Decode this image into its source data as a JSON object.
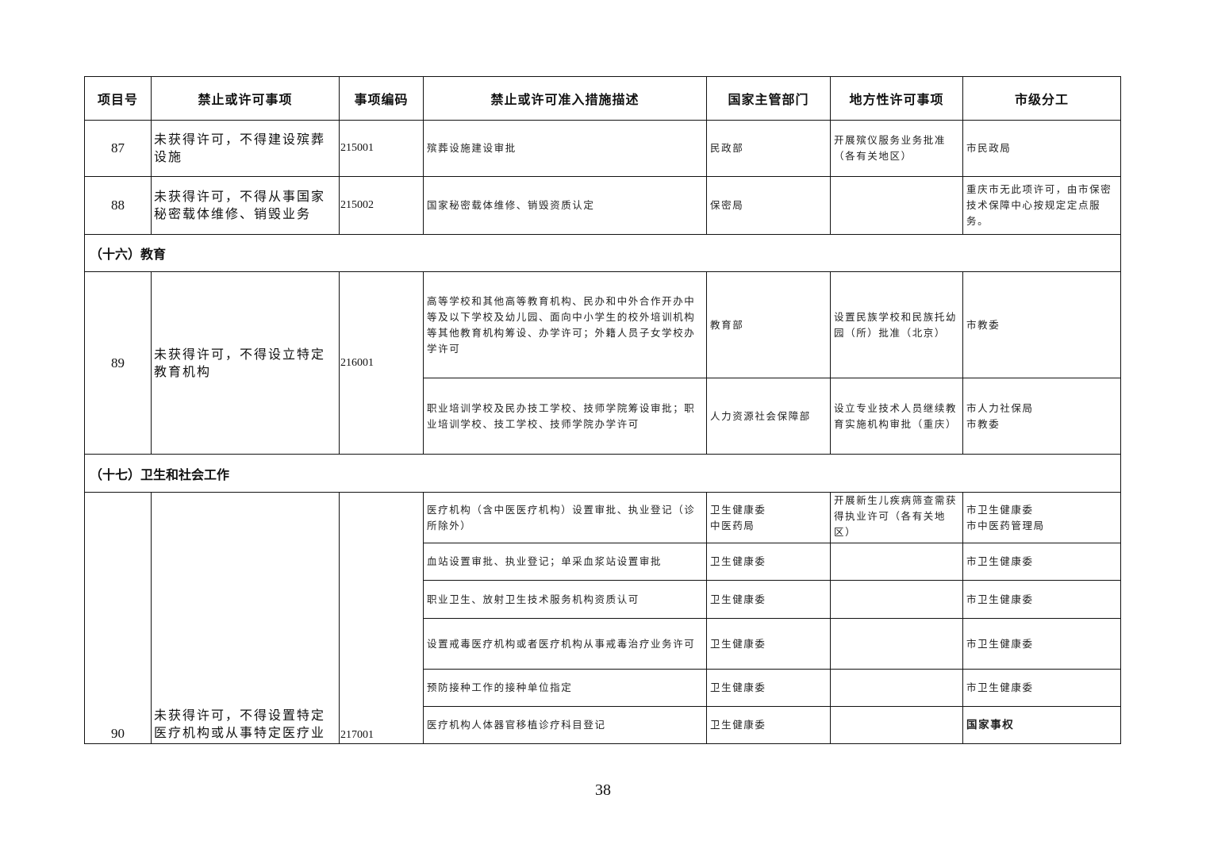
{
  "columns": [
    "项目号",
    "禁止或许可事项",
    "事项编码",
    "禁止或许可准入措施描述",
    "国家主管部门",
    "地方性许可事项",
    "市级分工"
  ],
  "rows": {
    "r87": {
      "num": "87",
      "item": "未获得许可，不得建设殡葬设施",
      "code": "215001",
      "desc": "殡葬设施建设审批",
      "dept": "民政部",
      "local": "开展殡仪服务业务批准（各有关地区）",
      "city": "市民政局"
    },
    "r88": {
      "num": "88",
      "item": "未获得许可，不得从事国家秘密载体维修、销毁业务",
      "code": "215002",
      "desc": "国家秘密载体维修、销毁资质认定",
      "dept": "保密局",
      "local": "",
      "city": "重庆市无此项许可，由市保密技术保障中心按规定定点服务。"
    }
  },
  "section16": "（十六）教育",
  "r89": {
    "num": "89",
    "item": "未获得许可，不得设立特定教育机构",
    "code": "216001",
    "subs": [
      {
        "desc": "高等学校和其他高等教育机构、民办和中外合作开办中等及以下学校及幼儿园、面向中小学生的校外培训机构等其他教育机构筹设、办学许可；外籍人员子女学校办学许可",
        "dept": "教育部",
        "local": "设置民族学校和民族托幼园（所）批准（北京）",
        "city": "市教委"
      },
      {
        "desc": "职业培训学校及民办技工学校、技师学院筹设审批；职业培训学校、技工学校、技师学院办学许可",
        "dept": "人力资源社会保障部",
        "local": "设立专业技术人员继续教育实施机构审批（重庆）",
        "city": "市人力社保局\n市教委"
      }
    ]
  },
  "section17": "（十七）卫生和社会工作",
  "r90": {
    "num": "90",
    "item": "未获得许可，不得设置特定医疗机构或从事特定医疗业",
    "code": "217001",
    "subs": [
      {
        "desc": "医疗机构（含中医医疗机构）设置审批、执业登记（诊所除外）",
        "dept": "卫生健康委\n中医药局",
        "local": "开展新生儿疾病筛查需获得执业许可（各有关地区）",
        "city": "市卫生健康委\n市中医药管理局"
      },
      {
        "desc": "血站设置审批、执业登记；单采血浆站设置审批",
        "dept": "卫生健康委",
        "local": "",
        "city": "市卫生健康委"
      },
      {
        "desc": "职业卫生、放射卫生技术服务机构资质认可",
        "dept": "卫生健康委",
        "local": "",
        "city": "市卫生健康委"
      },
      {
        "desc": "设置戒毒医疗机构或者医疗机构从事戒毒治疗业务许可",
        "dept": "卫生健康委",
        "local": "",
        "city": "市卫生健康委"
      },
      {
        "desc": "预防接种工作的接种单位指定",
        "dept": "卫生健康委",
        "local": "",
        "city": "市卫生健康委"
      },
      {
        "desc": "医疗机构人体器官移植诊疗科目登记",
        "dept": "卫生健康委",
        "local": "",
        "city": "国家事权"
      }
    ]
  },
  "page_number": "38"
}
